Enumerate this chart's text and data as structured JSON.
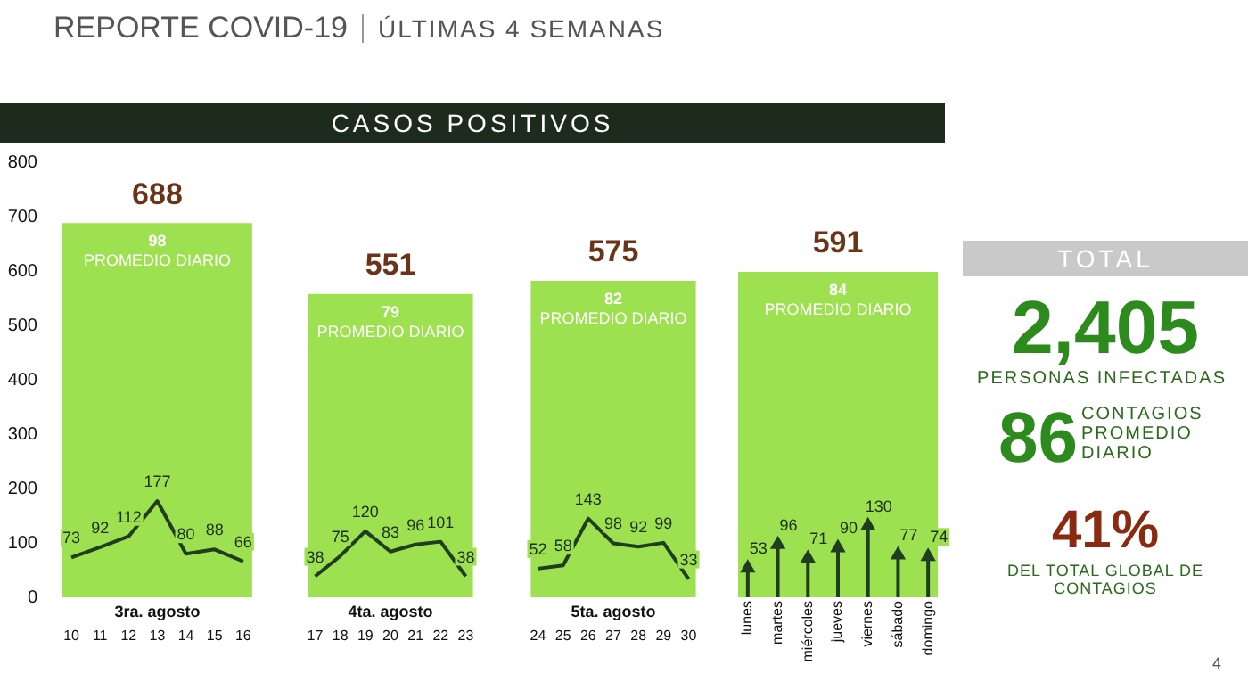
{
  "chart_data": [
    {
      "type": "line",
      "annotations": [
        "REPORTE COVID-19",
        "ÚLTIMAS 4 SEMANAS",
        "CASOS POSITIVOS",
        "98",
        "PROMEDIO DIARIO"
      ],
      "xlabel": "3ra. agosto",
      "categories": [
        "10",
        "11",
        "12",
        "13",
        "14",
        "15",
        "16"
      ],
      "values": [
        73,
        92,
        112,
        177,
        80,
        88,
        66
      ],
      "color": "#1f3d1f",
      "data_labels": true,
      "bands": [
        {
          "axis": "y",
          "from": 0,
          "to": 688,
          "label": "688",
          "color": "#9ee150"
        }
      ],
      "ylim": [
        0,
        800
      ],
      "yticks": [
        0,
        100,
        200,
        300,
        400,
        500,
        600,
        700,
        800
      ],
      "grid": false,
      "legend": false,
      "marker": "none"
    },
    {
      "type": "line",
      "annotations": [
        "79",
        "PROMEDIO DIARIO"
      ],
      "xlabel": "4ta. agosto",
      "categories": [
        "17",
        "18",
        "19",
        "20",
        "21",
        "22",
        "23"
      ],
      "values": [
        38,
        75,
        120,
        83,
        96,
        101,
        38
      ],
      "color": "#1f3d1f",
      "data_labels": true,
      "bands": [
        {
          "axis": "y",
          "from": 0,
          "to": 551,
          "label": "551",
          "color": "#9ee150"
        }
      ],
      "ylim": [
        0,
        800
      ],
      "tick_labels": "x",
      "grid": false,
      "legend": false,
      "marker": "none"
    },
    {
      "type": "line",
      "annotations": [
        "82",
        "PROMEDIO DIARIO"
      ],
      "xlabel": "5ta. agosto",
      "categories": [
        "24",
        "25",
        "26",
        "27",
        "28",
        "29",
        "30"
      ],
      "values": [
        52,
        58,
        143,
        98,
        92,
        99,
        33
      ],
      "color": "#1f3d1f",
      "data_labels": true,
      "bands": [
        {
          "axis": "y",
          "from": 0,
          "to": 575,
          "label": "575",
          "color": "#9ee150"
        }
      ],
      "ylim": [
        0,
        800
      ],
      "tick_labels": "x",
      "grid": false,
      "legend": false,
      "marker": "none"
    },
    {
      "type": "lollipop",
      "annotations": [
        "84",
        "PROMEDIO DIARIO"
      ],
      "categories": [
        "lunes",
        "martes",
        "miércoles",
        "jueves",
        "viernes",
        "sábado",
        "domingo"
      ],
      "values": [
        53,
        96,
        71,
        90,
        130,
        77,
        74
      ],
      "color": "#1f3d1f",
      "data_labels": true,
      "bands": [
        {
          "axis": "y",
          "from": 0,
          "to": 591,
          "label": "591",
          "color": "#9ee150"
        }
      ],
      "ylim": [
        0,
        800
      ],
      "tick_labels": "x",
      "grid": false,
      "legend": false,
      "marker": "triangle"
    },
    {
      "type": "other",
      "title": "TOTAL",
      "annotations": [
        "2,405",
        "PERSONAS INFECTADAS",
        "86",
        "CONTAGIOS PROMEDIO DIARIO",
        "41%",
        "DEL TOTAL GLOBAL DE CONTAGIOS",
        "4"
      ]
    }
  ]
}
